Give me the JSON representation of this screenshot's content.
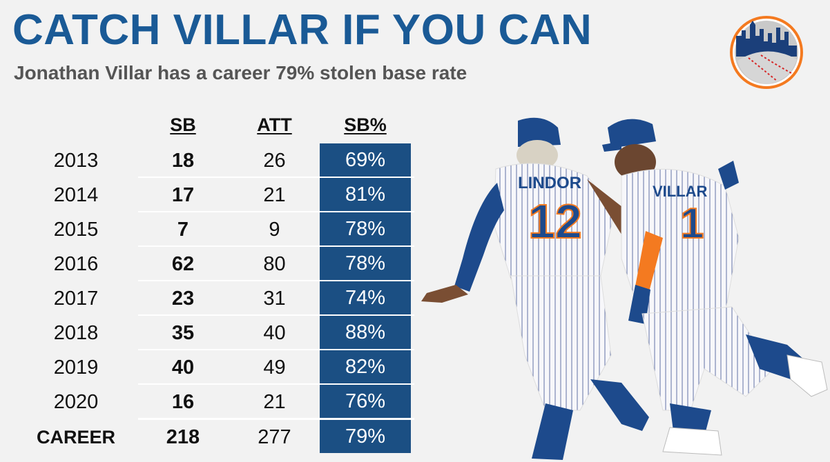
{
  "title": "CATCH VILLAR IF YOU CAN",
  "subtitle": "Jonathan Villar has a career 79% stolen base rate",
  "chart_data": {
    "type": "table",
    "columns": [
      "SB",
      "ATT",
      "SB%"
    ],
    "rows": [
      {
        "year": "2013",
        "sb": "18",
        "att": "26",
        "pct": "69%"
      },
      {
        "year": "2014",
        "sb": "17",
        "att": "21",
        "pct": "81%"
      },
      {
        "year": "2015",
        "sb": "7",
        "att": "9",
        "pct": "78%"
      },
      {
        "year": "2016",
        "sb": "62",
        "att": "80",
        "pct": "78%"
      },
      {
        "year": "2017",
        "sb": "23",
        "att": "31",
        "pct": "74%"
      },
      {
        "year": "2018",
        "sb": "35",
        "att": "40",
        "pct": "88%"
      },
      {
        "year": "2019",
        "sb": "40",
        "att": "49",
        "pct": "82%"
      },
      {
        "year": "2020",
        "sb": "16",
        "att": "21",
        "pct": "76%"
      }
    ],
    "career": {
      "year": "CAREER",
      "sb": "218",
      "att": "277",
      "pct": "79%"
    }
  },
  "photo": {
    "jersey_left_name": "LINDOR",
    "jersey_left_number": "12",
    "jersey_right_name": "VILLAR",
    "jersey_right_number": "1"
  },
  "colors": {
    "title": "#1a5a96",
    "cell_fill": "#1b4f83",
    "background": "#f2f2f2",
    "accent_orange": "#f47a20"
  }
}
